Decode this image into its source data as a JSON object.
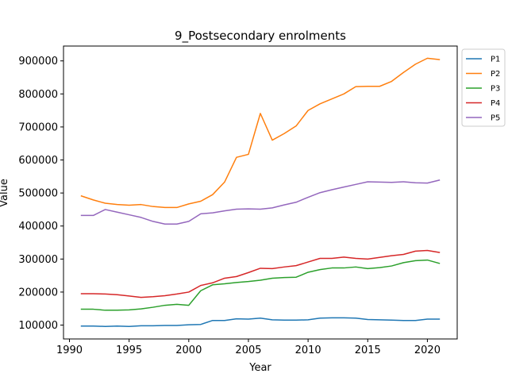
{
  "chart_data": {
    "type": "line",
    "title": "9_Postsecondary enrolments",
    "xlabel": "Year",
    "ylabel": "Value",
    "xlim": [
      1989.5,
      2022.5
    ],
    "ylim": [
      58000,
      945000
    ],
    "grid": false,
    "legend_position": "outside-top-right",
    "x_ticks": [
      1990,
      1995,
      2000,
      2005,
      2010,
      2015,
      2020
    ],
    "x_tick_labels": [
      "1990",
      "1995",
      "2000",
      "2005",
      "2010",
      "2015",
      "2020"
    ],
    "y_ticks": [
      100000,
      200000,
      300000,
      400000,
      500000,
      600000,
      700000,
      800000,
      900000
    ],
    "y_tick_labels": [
      "100000",
      "200000",
      "300000",
      "400000",
      "500000",
      "600000",
      "700000",
      "800000",
      "900000"
    ],
    "x": [
      1991,
      1992,
      1993,
      1994,
      1995,
      1996,
      1997,
      1998,
      1999,
      2000,
      2001,
      2002,
      2003,
      2004,
      2005,
      2006,
      2007,
      2008,
      2009,
      2010,
      2011,
      2012,
      2013,
      2014,
      2015,
      2016,
      2017,
      2018,
      2019,
      2020,
      2021
    ],
    "series": [
      {
        "name": "P1",
        "color": "#1f77b4",
        "values": [
          97000,
          97000,
          96000,
          97000,
          96000,
          98000,
          98000,
          99000,
          99000,
          101000,
          102000,
          114000,
          114000,
          119000,
          118000,
          121000,
          116000,
          115000,
          115000,
          116000,
          121000,
          122000,
          122000,
          121000,
          117000,
          116000,
          115000,
          114000,
          114000,
          118000,
          118000
        ]
      },
      {
        "name": "P2",
        "color": "#ff7f0e",
        "values": [
          491000,
          479000,
          469000,
          465000,
          463000,
          465000,
          459000,
          456000,
          456000,
          467000,
          475000,
          495000,
          533000,
          608000,
          617000,
          741000,
          660000,
          680000,
          703000,
          750000,
          770000,
          785000,
          800000,
          822000,
          823000,
          823000,
          838000,
          865000,
          890000,
          908000,
          904000
        ]
      },
      {
        "name": "P3",
        "color": "#2ca02c",
        "values": [
          148000,
          148000,
          145000,
          145000,
          146000,
          149000,
          154000,
          160000,
          163000,
          160000,
          204000,
          222000,
          225000,
          229000,
          232000,
          236000,
          242000,
          244000,
          245000,
          260000,
          268000,
          273000,
          273000,
          276000,
          271000,
          274000,
          279000,
          289000,
          295000,
          297000,
          287000
        ]
      },
      {
        "name": "P4",
        "color": "#d62728",
        "values": [
          195000,
          195000,
          194000,
          192000,
          188000,
          184000,
          186000,
          189000,
          194000,
          200000,
          220000,
          228000,
          242000,
          247000,
          259000,
          272000,
          271000,
          276000,
          280000,
          291000,
          302000,
          302000,
          306000,
          302000,
          300000,
          305000,
          310000,
          314000,
          324000,
          326000,
          320000
        ]
      },
      {
        "name": "P5",
        "color": "#9467bd",
        "values": [
          432000,
          432000,
          450000,
          442000,
          434000,
          426000,
          414000,
          406000,
          406000,
          414000,
          437000,
          440000,
          446000,
          451000,
          452000,
          451000,
          455000,
          464000,
          472000,
          487000,
          501000,
          510000,
          518000,
          526000,
          534000,
          533000,
          532000,
          534000,
          531000,
          530000,
          539000
        ]
      }
    ]
  }
}
